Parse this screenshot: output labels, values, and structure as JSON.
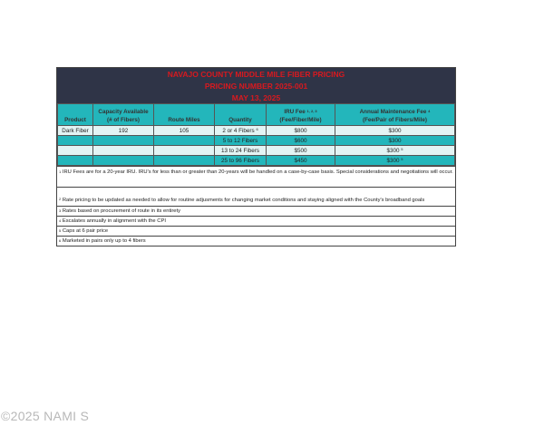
{
  "title": {
    "line1": "NAVAJO COUNTY MIDDLE MILE FIBER PRICING",
    "line2": "PRICING NUMBER 2025-001",
    "line3": "MAY 13, 2025"
  },
  "colors": {
    "title_bg": "#2f3447",
    "title_text": "#d8191f",
    "teal": "#23b6bb",
    "light": "#e3f4f4"
  },
  "headers": {
    "product": "Product",
    "capacity_1": "Capacity Available",
    "capacity_2": "(# of Fibers)",
    "route_miles": "Route Miles",
    "quantity": "Quantity",
    "iru_1": "IRU Fee",
    "iru_sup": "1, 2, 3",
    "iru_2": "(Fee/Fiber/Mile)",
    "maint_1": "Annual Maintenance Fee",
    "maint_sup": "4",
    "maint_2": "(Fee/Pair of Fibers/Mile)"
  },
  "rows": [
    {
      "product": "Dark Fiber",
      "capacity": "192",
      "route_miles": "105",
      "quantity": "2 or 4 Fibers",
      "quantity_sup": "6",
      "iru": "$800",
      "maint": "$300",
      "maint_sup": ""
    },
    {
      "product": "",
      "capacity": "",
      "route_miles": "",
      "quantity": "5 to 12 Fibers",
      "quantity_sup": "",
      "iru": "$600",
      "maint": "$300",
      "maint_sup": ""
    },
    {
      "product": "",
      "capacity": "",
      "route_miles": "",
      "quantity": "13 to 24 Fibers",
      "quantity_sup": "",
      "iru": "$500",
      "maint": "$300",
      "maint_sup": "5"
    },
    {
      "product": "",
      "capacity": "",
      "route_miles": "",
      "quantity": "25 to 96 Fibers",
      "quantity_sup": "",
      "iru": "$450",
      "maint": "$300",
      "maint_sup": "5"
    }
  ],
  "notes": [
    {
      "num": "1",
      "text": "IRU Fees are for a 20-year IRU.  IRU's for less than or greater than 20-years will be handled on a case-by-case basis.  Special considerations and negotiations will occur."
    },
    {
      "num": "2",
      "text": "Rate pricing to be updated as needed to allow for routine adjusments for changing market conditions and staying aligned with the County's broadband goals"
    },
    {
      "num": "3",
      "text": "Rates based on procurement of route in its entirety"
    },
    {
      "num": "4",
      "text": "Escalates annually in alignment with the CPI"
    },
    {
      "num": "5",
      "text": "Caps at 6 pair price"
    },
    {
      "num": "6",
      "text": "Marketed in pairs only up to 4 fibers"
    }
  ],
  "watermark": "©2025 NAMI S"
}
